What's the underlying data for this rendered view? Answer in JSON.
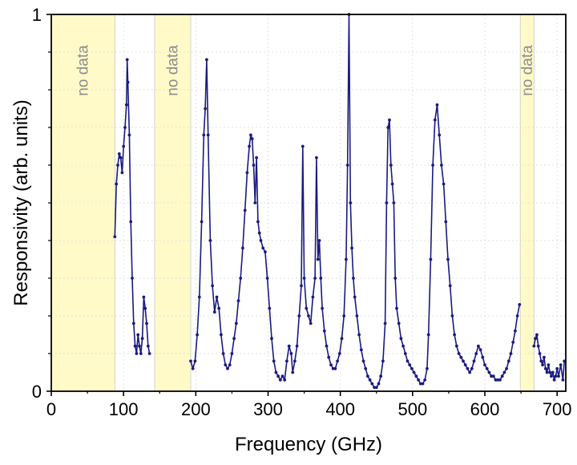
{
  "chart_data": {
    "type": "line",
    "xlabel": "Frequency (GHz)",
    "ylabel": "Responsivity (arb. units)",
    "xlim": [
      0,
      712
    ],
    "ylim": [
      0,
      1
    ],
    "x_ticks": [
      0,
      100,
      200,
      300,
      400,
      500,
      600,
      700
    ],
    "y_ticks": [
      0,
      1
    ],
    "y_minor_ticks": [
      0.1,
      0.2,
      0.3,
      0.4,
      0.5,
      0.6,
      0.7,
      0.8,
      0.9
    ],
    "grid": true,
    "no_data_bands": [
      {
        "start": 0,
        "end": 88,
        "label": "no data"
      },
      {
        "start": 143,
        "end": 193,
        "label": "no data"
      },
      {
        "start": 649,
        "end": 668,
        "label": "no data"
      }
    ],
    "colors": {
      "series": "#1a1a80",
      "band": "#fffac8",
      "band_text": "#8c8c8c"
    },
    "series": [
      {
        "segments": [
          [
            [
              88,
              0.41
            ],
            [
              90,
              0.55
            ],
            [
              92,
              0.6
            ],
            [
              94,
              0.63
            ],
            [
              96,
              0.62
            ],
            [
              98,
              0.58
            ],
            [
              100,
              0.65
            ],
            [
              102,
              0.7
            ],
            [
              104,
              0.76
            ],
            [
              105,
              0.88
            ],
            [
              106,
              0.82
            ],
            [
              108,
              0.68
            ],
            [
              110,
              0.45
            ],
            [
              112,
              0.3
            ],
            [
              114,
              0.18
            ],
            [
              116,
              0.12
            ],
            [
              118,
              0.1
            ],
            [
              120,
              0.15
            ],
            [
              122,
              0.12
            ],
            [
              124,
              0.1
            ],
            [
              126,
              0.14
            ],
            [
              128,
              0.25
            ],
            [
              130,
              0.22
            ],
            [
              132,
              0.18
            ],
            [
              134,
              0.12
            ],
            [
              136,
              0.1
            ]
          ],
          [
            [
              193,
              0.08
            ],
            [
              196,
              0.06
            ],
            [
              199,
              0.08
            ],
            [
              202,
              0.15
            ],
            [
              205,
              0.25
            ],
            [
              208,
              0.45
            ],
            [
              211,
              0.68
            ],
            [
              213,
              0.75
            ],
            [
              215,
              0.88
            ],
            [
              217,
              0.68
            ],
            [
              220,
              0.4
            ],
            [
              223,
              0.28
            ],
            [
              226,
              0.21
            ],
            [
              229,
              0.25
            ],
            [
              232,
              0.22
            ],
            [
              235,
              0.15
            ],
            [
              238,
              0.1
            ],
            [
              241,
              0.07
            ],
            [
              244,
              0.06
            ],
            [
              247,
              0.07
            ],
            [
              250,
              0.1
            ],
            [
              253,
              0.14
            ],
            [
              256,
              0.18
            ],
            [
              259,
              0.24
            ],
            [
              262,
              0.3
            ],
            [
              265,
              0.38
            ],
            [
              268,
              0.48
            ],
            [
              271,
              0.58
            ],
            [
              274,
              0.65
            ],
            [
              276,
              0.68
            ],
            [
              278,
              0.67
            ],
            [
              280,
              0.6
            ],
            [
              282,
              0.5
            ],
            [
              284,
              0.62
            ],
            [
              286,
              0.45
            ],
            [
              288,
              0.42
            ],
            [
              290,
              0.4
            ],
            [
              293,
              0.38
            ],
            [
              296,
              0.37
            ],
            [
              299,
              0.3
            ],
            [
              302,
              0.22
            ],
            [
              305,
              0.14
            ],
            [
              308,
              0.08
            ],
            [
              311,
              0.05
            ],
            [
              314,
              0.04
            ],
            [
              317,
              0.03
            ],
            [
              320,
              0.04
            ],
            [
              323,
              0.03
            ],
            [
              326,
              0.08
            ],
            [
              329,
              0.12
            ],
            [
              332,
              0.1
            ],
            [
              334,
              0.05
            ],
            [
              337,
              0.08
            ],
            [
              340,
              0.12
            ],
            [
              343,
              0.2
            ],
            [
              346,
              0.28
            ],
            [
              348,
              0.65
            ],
            [
              350,
              0.3
            ],
            [
              353,
              0.22
            ],
            [
              356,
              0.2
            ],
            [
              359,
              0.18
            ],
            [
              362,
              0.25
            ],
            [
              365,
              0.3
            ],
            [
              367,
              0.62
            ],
            [
              369,
              0.35
            ],
            [
              371,
              0.4
            ],
            [
              373,
              0.3
            ],
            [
              375,
              0.22
            ],
            [
              378,
              0.16
            ],
            [
              381,
              0.12
            ],
            [
              384,
              0.09
            ],
            [
              387,
              0.07
            ],
            [
              390,
              0.06
            ],
            [
              393,
              0.06
            ],
            [
              396,
              0.08
            ],
            [
              399,
              0.1
            ],
            [
              402,
              0.14
            ],
            [
              405,
              0.2
            ],
            [
              408,
              0.35
            ],
            [
              410,
              0.6
            ],
            [
              412,
              1.0
            ],
            [
              414,
              0.5
            ],
            [
              416,
              0.38
            ],
            [
              418,
              0.3
            ],
            [
              420,
              0.25
            ],
            [
              423,
              0.2
            ],
            [
              426,
              0.15
            ],
            [
              429,
              0.11
            ],
            [
              432,
              0.08
            ],
            [
              435,
              0.06
            ],
            [
              438,
              0.04
            ],
            [
              441,
              0.03
            ],
            [
              444,
              0.02
            ],
            [
              447,
              0.01
            ],
            [
              450,
              0.01
            ],
            [
              453,
              0.02
            ],
            [
              456,
              0.04
            ],
            [
              459,
              0.08
            ],
            [
              462,
              0.18
            ],
            [
              464,
              0.5
            ],
            [
              466,
              0.7
            ],
            [
              468,
              0.72
            ],
            [
              470,
              0.6
            ],
            [
              472,
              0.55
            ],
            [
              474,
              0.5
            ],
            [
              476,
              0.3
            ],
            [
              478,
              0.22
            ],
            [
              481,
              0.18
            ],
            [
              484,
              0.14
            ],
            [
              487,
              0.12
            ],
            [
              490,
              0.1
            ],
            [
              493,
              0.08
            ],
            [
              496,
              0.07
            ],
            [
              499,
              0.06
            ],
            [
              502,
              0.05
            ],
            [
              505,
              0.04
            ],
            [
              508,
              0.03
            ],
            [
              511,
              0.02
            ],
            [
              514,
              0.02
            ],
            [
              517,
              0.03
            ],
            [
              520,
              0.06
            ],
            [
              522,
              0.15
            ],
            [
              525,
              0.35
            ],
            [
              528,
              0.6
            ],
            [
              531,
              0.72
            ],
            [
              534,
              0.76
            ],
            [
              537,
              0.68
            ],
            [
              540,
              0.6
            ],
            [
              543,
              0.55
            ],
            [
              546,
              0.45
            ],
            [
              549,
              0.35
            ],
            [
              552,
              0.28
            ],
            [
              555,
              0.2
            ],
            [
              558,
              0.15
            ],
            [
              561,
              0.12
            ],
            [
              564,
              0.1
            ],
            [
              567,
              0.09
            ],
            [
              570,
              0.08
            ],
            [
              573,
              0.07
            ],
            [
              576,
              0.06
            ],
            [
              579,
              0.05
            ],
            [
              582,
              0.06
            ],
            [
              585,
              0.08
            ],
            [
              588,
              0.1
            ],
            [
              591,
              0.12
            ],
            [
              594,
              0.11
            ],
            [
              597,
              0.09
            ],
            [
              600,
              0.07
            ],
            [
              603,
              0.06
            ],
            [
              606,
              0.05
            ],
            [
              609,
              0.04
            ],
            [
              612,
              0.04
            ],
            [
              615,
              0.03
            ],
            [
              618,
              0.03
            ],
            [
              621,
              0.03
            ],
            [
              624,
              0.04
            ],
            [
              627,
              0.05
            ],
            [
              630,
              0.06
            ],
            [
              633,
              0.08
            ],
            [
              636,
              0.1
            ],
            [
              639,
              0.13
            ],
            [
              642,
              0.16
            ],
            [
              645,
              0.2
            ],
            [
              648,
              0.23
            ]
          ],
          [
            [
              668,
              0.12
            ],
            [
              670,
              0.14
            ],
            [
              672,
              0.15
            ],
            [
              674,
              0.12
            ],
            [
              676,
              0.1
            ],
            [
              678,
              0.08
            ],
            [
              680,
              0.07
            ],
            [
              682,
              0.09
            ],
            [
              684,
              0.06
            ],
            [
              686,
              0.05
            ],
            [
              688,
              0.07
            ],
            [
              690,
              0.05
            ],
            [
              692,
              0.04
            ],
            [
              694,
              0.05
            ],
            [
              696,
              0.03
            ],
            [
              698,
              0.04
            ],
            [
              700,
              0.06
            ],
            [
              702,
              0.04
            ],
            [
              705,
              0.07
            ],
            [
              708,
              0.03
            ],
            [
              710,
              0.08
            ]
          ]
        ]
      }
    ]
  }
}
